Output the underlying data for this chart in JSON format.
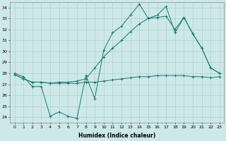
{
  "xlabel": "Humidex (Indice chaleur)",
  "bg_color": "#cce8e8",
  "grid_color": "#aacccc",
  "line_color": "#1a7a6e",
  "xlim": [
    -0.5,
    23.5
  ],
  "ylim": [
    23.5,
    34.5
  ],
  "xticks": [
    0,
    1,
    2,
    3,
    4,
    5,
    6,
    7,
    8,
    9,
    10,
    11,
    12,
    13,
    14,
    15,
    16,
    17,
    18,
    19,
    20,
    21,
    22,
    23
  ],
  "yticks": [
    24,
    25,
    26,
    27,
    28,
    29,
    30,
    31,
    32,
    33,
    34
  ],
  "line1_x": [
    0,
    1,
    2,
    3,
    4,
    5,
    6,
    7,
    8,
    9,
    10,
    11,
    12,
    13,
    14,
    15,
    16,
    17,
    18,
    19,
    20,
    21,
    22,
    23
  ],
  "line1_y": [
    28.0,
    27.7,
    26.8,
    26.8,
    24.1,
    24.5,
    24.1,
    23.9,
    27.8,
    25.7,
    30.1,
    31.7,
    32.3,
    33.3,
    34.3,
    33.0,
    33.3,
    34.1,
    31.7,
    33.1,
    31.6,
    30.3,
    28.5,
    28.0
  ],
  "line2_x": [
    0,
    1,
    2,
    3,
    4,
    5,
    6,
    7,
    8,
    9,
    10,
    11,
    12,
    13,
    14,
    15,
    16,
    17,
    18,
    19,
    20,
    21,
    22,
    23
  ],
  "line2_y": [
    27.9,
    27.5,
    27.2,
    27.2,
    27.1,
    27.1,
    27.1,
    27.1,
    27.2,
    27.2,
    27.3,
    27.4,
    27.5,
    27.6,
    27.7,
    27.7,
    27.8,
    27.8,
    27.8,
    27.8,
    27.7,
    27.7,
    27.6,
    27.7
  ],
  "line3_x": [
    0,
    1,
    2,
    3,
    4,
    5,
    6,
    7,
    8,
    9,
    10,
    11,
    12,
    13,
    14,
    15,
    16,
    17,
    18,
    19,
    20,
    21,
    22,
    23
  ],
  "line3_y": [
    27.9,
    27.5,
    27.2,
    27.2,
    27.1,
    27.2,
    27.2,
    27.3,
    27.5,
    28.5,
    29.5,
    30.3,
    31.0,
    31.8,
    32.5,
    33.0,
    33.1,
    33.2,
    32.0,
    33.1,
    31.6,
    30.3,
    28.5,
    28.0
  ]
}
